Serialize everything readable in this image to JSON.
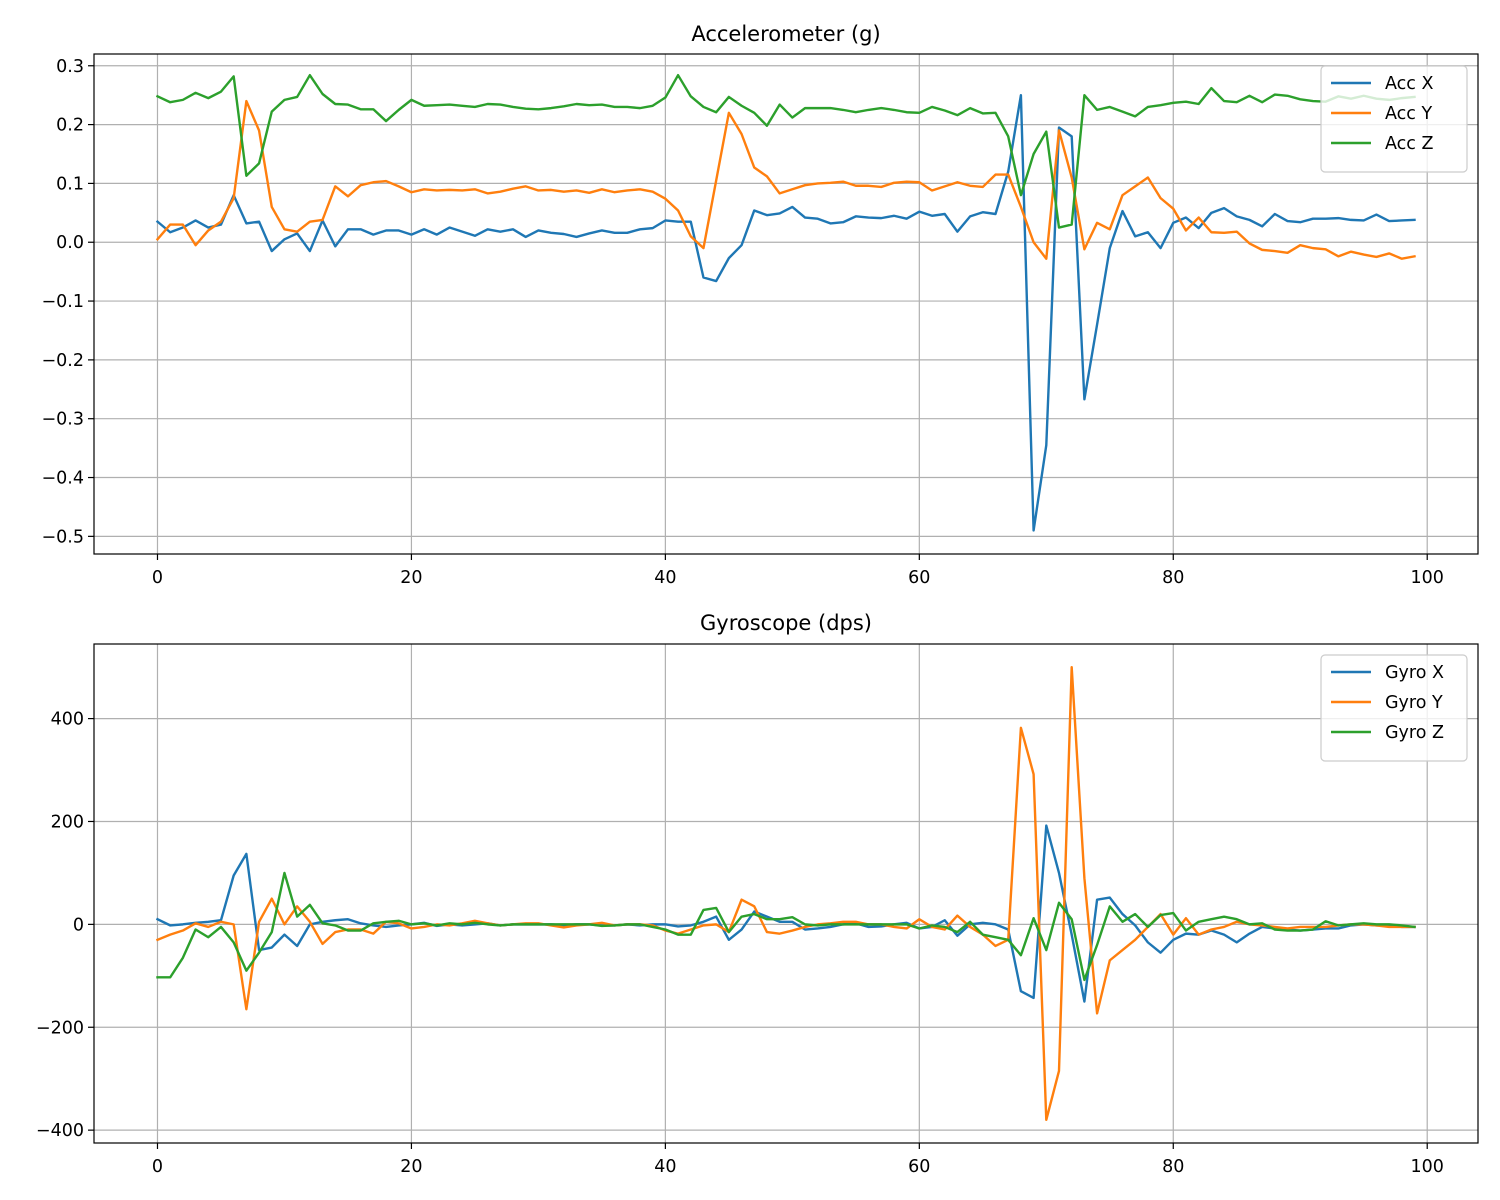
{
  "chart_data": [
    {
      "type": "line",
      "title": "Accelerometer (g)",
      "xlabel": "",
      "ylabel": "",
      "xlim": [
        -5,
        104
      ],
      "ylim": [
        -0.53,
        0.32
      ],
      "xticks": [
        0,
        20,
        40,
        60,
        80,
        100
      ],
      "xtick_labels": [
        "0",
        "20",
        "40",
        "60",
        "80",
        "100"
      ],
      "yticks": [
        -0.5,
        -0.4,
        -0.3,
        -0.2,
        -0.1,
        0.0,
        0.1,
        0.2,
        0.3
      ],
      "ytick_labels": [
        "−0.5",
        "−0.4",
        "−0.3",
        "−0.2",
        "−0.1",
        "0.0",
        "0.1",
        "0.2",
        "0.3"
      ],
      "grid": true,
      "legend_position": "top-right",
      "series": [
        {
          "name": "Acc X",
          "color": "#1f77b4",
          "values": [
            0.035,
            0.017,
            0.025,
            0.037,
            0.025,
            0.03,
            0.08,
            0.032,
            0.035,
            -0.015,
            0.005,
            0.015,
            -0.015,
            0.037,
            -0.007,
            0.022,
            0.022,
            0.013,
            0.02,
            0.02,
            0.013,
            0.022,
            0.013,
            0.025,
            0.018,
            0.011,
            0.022,
            0.018,
            0.022,
            0.009,
            0.02,
            0.016,
            0.014,
            0.009,
            0.015,
            0.02,
            0.016,
            0.016,
            0.022,
            0.024,
            0.037,
            0.035,
            0.035,
            -0.06,
            -0.066,
            -0.027,
            -0.005,
            0.054,
            0.046,
            0.049,
            0.06,
            0.042,
            0.04,
            0.032,
            0.034,
            0.044,
            0.042,
            0.041,
            0.045,
            0.04,
            0.052,
            0.045,
            0.048,
            0.018,
            0.044,
            0.051,
            0.048,
            0.12,
            0.25,
            -0.49,
            -0.345,
            0.195,
            0.18,
            -0.267,
            -0.14,
            -0.01,
            0.053,
            0.01,
            0.017,
            -0.01,
            0.033,
            0.042,
            0.024,
            0.05,
            0.058,
            0.044,
            0.038,
            0.027,
            0.048,
            0.036,
            0.034,
            0.04,
            0.04,
            0.041,
            0.038,
            0.037,
            0.047,
            0.036,
            0.037,
            0.038
          ]
        },
        {
          "name": "Acc Y",
          "color": "#ff7f0e",
          "values": [
            0.005,
            0.03,
            0.03,
            -0.005,
            0.02,
            0.035,
            0.075,
            0.24,
            0.19,
            0.06,
            0.022,
            0.018,
            0.035,
            0.038,
            0.095,
            0.078,
            0.097,
            0.102,
            0.104,
            0.095,
            0.085,
            0.09,
            0.088,
            0.089,
            0.088,
            0.09,
            0.083,
            0.086,
            0.091,
            0.095,
            0.088,
            0.089,
            0.086,
            0.088,
            0.084,
            0.09,
            0.085,
            0.088,
            0.09,
            0.086,
            0.074,
            0.054,
            0.01,
            -0.01,
            0.105,
            0.22,
            0.184,
            0.127,
            0.112,
            0.083,
            0.09,
            0.097,
            0.1,
            0.101,
            0.103,
            0.096,
            0.096,
            0.094,
            0.101,
            0.103,
            0.102,
            0.088,
            0.095,
            0.102,
            0.096,
            0.094,
            0.115,
            0.115,
            0.06,
            0.0,
            -0.028,
            0.19,
            0.11,
            -0.012,
            0.033,
            0.022,
            0.08,
            0.095,
            0.11,
            0.075,
            0.057,
            0.02,
            0.042,
            0.017,
            0.016,
            0.018,
            -0.002,
            -0.013,
            -0.015,
            -0.018,
            -0.005,
            -0.01,
            -0.012,
            -0.024,
            -0.016,
            -0.021,
            -0.025,
            -0.019,
            -0.028,
            -0.024
          ]
        },
        {
          "name": "Acc Z",
          "color": "#2ca02c",
          "values": [
            0.248,
            0.238,
            0.242,
            0.254,
            0.245,
            0.256,
            0.282,
            0.113,
            0.134,
            0.222,
            0.242,
            0.247,
            0.284,
            0.252,
            0.235,
            0.234,
            0.226,
            0.226,
            0.206,
            0.225,
            0.242,
            0.232,
            0.233,
            0.234,
            0.232,
            0.23,
            0.235,
            0.234,
            0.23,
            0.227,
            0.226,
            0.228,
            0.231,
            0.235,
            0.233,
            0.234,
            0.23,
            0.23,
            0.228,
            0.232,
            0.246,
            0.284,
            0.248,
            0.23,
            0.221,
            0.247,
            0.232,
            0.22,
            0.198,
            0.234,
            0.212,
            0.228,
            0.228,
            0.228,
            0.225,
            0.221,
            0.225,
            0.228,
            0.225,
            0.221,
            0.22,
            0.23,
            0.224,
            0.216,
            0.228,
            0.219,
            0.22,
            0.18,
            0.08,
            0.15,
            0.188,
            0.025,
            0.03,
            0.25,
            0.225,
            0.23,
            0.222,
            0.214,
            0.23,
            0.233,
            0.237,
            0.239,
            0.235,
            0.262,
            0.24,
            0.238,
            0.249,
            0.238,
            0.251,
            0.249,
            0.243,
            0.24,
            0.239,
            0.248,
            0.244,
            0.249,
            0.244,
            0.242,
            0.245,
            0.247
          ]
        }
      ]
    },
    {
      "type": "line",
      "title": "Gyroscope (dps)",
      "xlabel": "",
      "ylabel": "",
      "xlim": [
        -5,
        104
      ],
      "ylim": [
        -425,
        545
      ],
      "xticks": [
        0,
        20,
        40,
        60,
        80,
        100
      ],
      "xtick_labels": [
        "0",
        "20",
        "40",
        "60",
        "80",
        "100"
      ],
      "yticks": [
        -400,
        -200,
        0,
        200,
        400
      ],
      "ytick_labels": [
        "−400",
        "−200",
        "0",
        "200",
        "400"
      ],
      "grid": true,
      "legend_position": "top-right",
      "series": [
        {
          "name": "Gyro X",
          "color": "#1f77b4",
          "values": [
            10,
            -2,
            0,
            3,
            5,
            8,
            95,
            137,
            -50,
            -45,
            -20,
            -42,
            0,
            5,
            8,
            10,
            2,
            -2,
            -5,
            -2,
            0,
            3,
            -3,
            0,
            -2,
            0,
            2,
            -2,
            0,
            0,
            0,
            0,
            -2,
            0,
            0,
            -2,
            -2,
            0,
            -2,
            0,
            0,
            -4,
            -2,
            5,
            15,
            -30,
            -10,
            25,
            15,
            5,
            5,
            -10,
            -8,
            -5,
            0,
            2,
            -5,
            -4,
            0,
            3,
            -8,
            -5,
            8,
            -22,
            0,
            3,
            0,
            -10,
            -130,
            -143,
            192,
            100,
            -20,
            -150,
            48,
            52,
            20,
            -2,
            -35,
            -55,
            -30,
            -18,
            -20,
            -12,
            -20,
            -35,
            -18,
            -5,
            -8,
            -10,
            -12,
            -10,
            -8,
            -8,
            -2,
            0,
            -2,
            -2,
            -5,
            -5
          ]
        },
        {
          "name": "Gyro Y",
          "color": "#ff7f0e",
          "values": [
            -30,
            -20,
            -12,
            2,
            -5,
            5,
            0,
            -165,
            5,
            50,
            0,
            35,
            5,
            -38,
            -15,
            -10,
            -10,
            -18,
            5,
            2,
            -8,
            -5,
            0,
            -2,
            2,
            7,
            2,
            -2,
            0,
            2,
            2,
            -2,
            -6,
            -2,
            0,
            3,
            -2,
            0,
            0,
            -2,
            -12,
            -18,
            -10,
            -2,
            0,
            -15,
            48,
            35,
            -15,
            -18,
            -12,
            -5,
            0,
            2,
            5,
            5,
            0,
            0,
            -5,
            -8,
            10,
            -5,
            -10,
            17,
            -5,
            -20,
            -42,
            -30,
            382,
            292,
            -380,
            -285,
            500,
            90,
            -173,
            -70,
            -50,
            -30,
            -5,
            20,
            -20,
            12,
            -20,
            -10,
            -5,
            5,
            0,
            -2,
            -5,
            -8,
            -5,
            -5,
            -5,
            -2,
            0,
            0,
            -2,
            -5,
            -5,
            -5
          ]
        },
        {
          "name": "Gyro Z",
          "color": "#2ca02c",
          "values": [
            -103,
            -103,
            -65,
            -10,
            -25,
            -5,
            -35,
            -90,
            -55,
            -15,
            100,
            15,
            38,
            2,
            -2,
            -12,
            -12,
            2,
            5,
            7,
            0,
            2,
            -2,
            2,
            0,
            3,
            0,
            -2,
            0,
            0,
            0,
            0,
            0,
            0,
            0,
            -3,
            -2,
            0,
            0,
            -5,
            -10,
            -20,
            -20,
            28,
            32,
            -15,
            15,
            20,
            10,
            10,
            14,
            0,
            -2,
            0,
            0,
            0,
            0,
            0,
            0,
            0,
            -8,
            -2,
            -5,
            -15,
            5,
            -20,
            -25,
            -30,
            -60,
            12,
            -50,
            42,
            10,
            -108,
            -40,
            35,
            5,
            20,
            -5,
            18,
            22,
            -12,
            5,
            10,
            15,
            10,
            0,
            2,
            -10,
            -12,
            -12,
            -10,
            6,
            -2,
            0,
            2,
            0,
            0,
            -2,
            -5
          ]
        }
      ]
    }
  ]
}
